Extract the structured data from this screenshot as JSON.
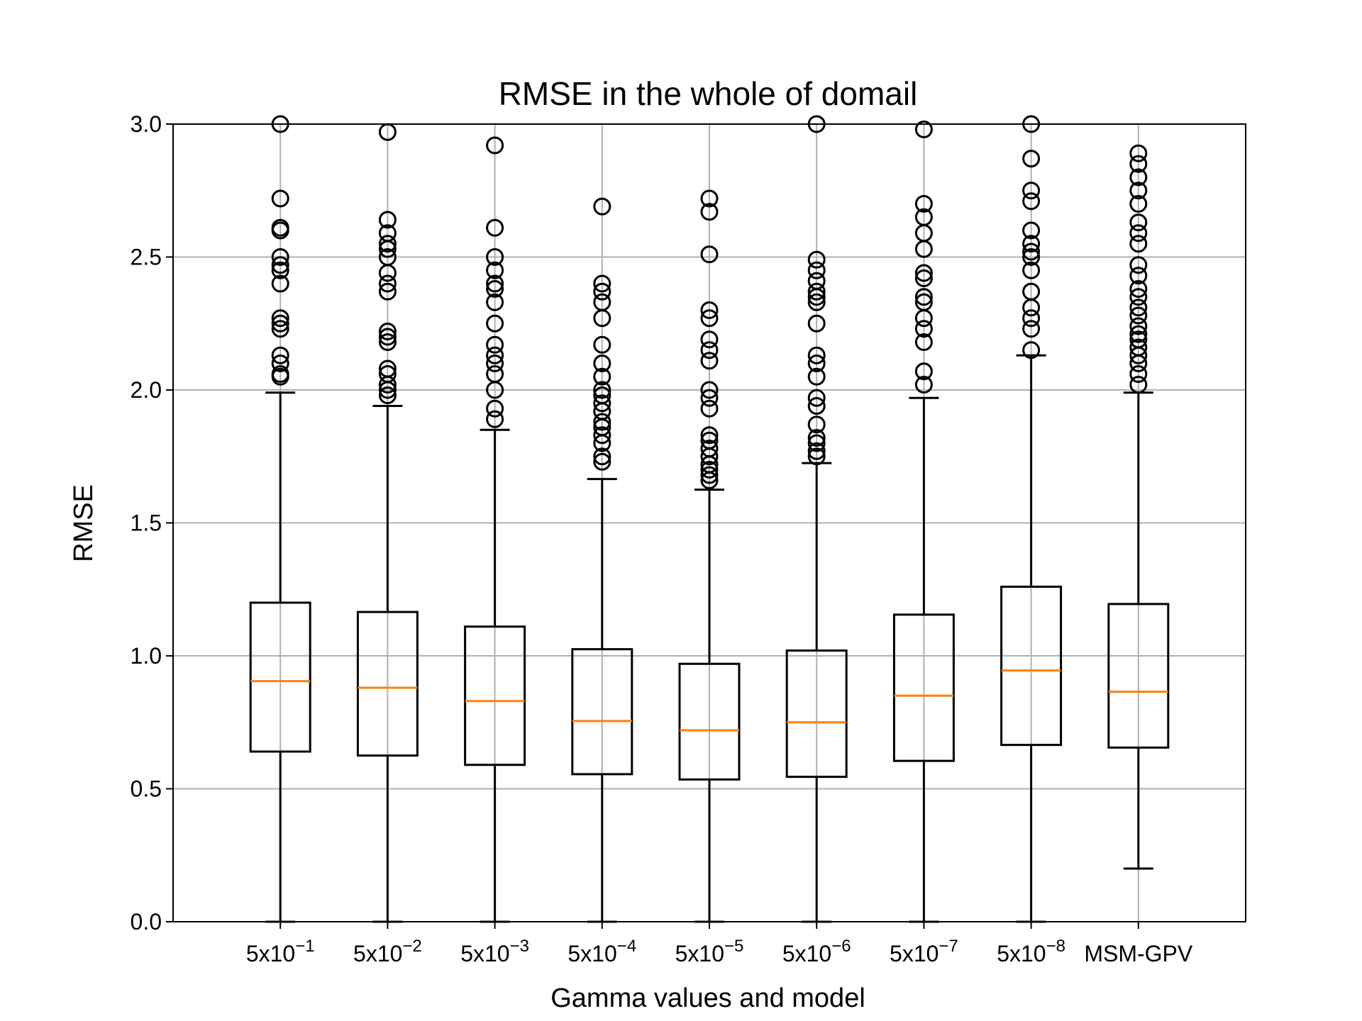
{
  "chart_data": {
    "type": "boxplot",
    "title": "RMSE in the whole of domail",
    "xlabel": "Gamma values and model",
    "ylabel": "RMSE",
    "ylim": [
      0,
      3.0
    ],
    "yticks": [
      "0.0",
      "0.5",
      "1.0",
      "1.5",
      "2.0",
      "2.5",
      "3.0"
    ],
    "grid": true,
    "colors": {
      "box": "#000000",
      "median": "#ff7f0e",
      "grid": "#b0b0b0"
    },
    "categories": [
      {
        "base": "5x10",
        "exp": "−1"
      },
      {
        "base": "5x10",
        "exp": "−2"
      },
      {
        "base": "5x10",
        "exp": "−3"
      },
      {
        "base": "5x10",
        "exp": "−4"
      },
      {
        "base": "5x10",
        "exp": "−5"
      },
      {
        "base": "5x10",
        "exp": "−6"
      },
      {
        "base": "5x10",
        "exp": "−7"
      },
      {
        "base": "5x10",
        "exp": "−8"
      },
      {
        "base": "MSM-GPV",
        "exp": ""
      }
    ],
    "boxes": [
      {
        "whisker_low": 0.0,
        "q1": 0.64,
        "median": 0.905,
        "q3": 1.2,
        "whisker_high": 1.99,
        "outliers": [
          2.05,
          2.06,
          2.1,
          2.13,
          2.23,
          2.25,
          2.27,
          2.4,
          2.45,
          2.47,
          2.5,
          2.6,
          2.61,
          2.72,
          3.0
        ]
      },
      {
        "whisker_low": 0.0,
        "q1": 0.625,
        "median": 0.88,
        "q3": 1.165,
        "whisker_high": 1.94,
        "outliers": [
          1.98,
          2.0,
          2.02,
          2.06,
          2.08,
          2.18,
          2.2,
          2.22,
          2.37,
          2.4,
          2.44,
          2.5,
          2.53,
          2.55,
          2.59,
          2.64,
          2.97
        ]
      },
      {
        "whisker_low": 0.0,
        "q1": 0.59,
        "median": 0.83,
        "q3": 1.11,
        "whisker_high": 1.85,
        "outliers": [
          1.89,
          1.93,
          2.0,
          2.06,
          2.1,
          2.13,
          2.17,
          2.25,
          2.33,
          2.38,
          2.4,
          2.45,
          2.5,
          2.61,
          2.92
        ]
      },
      {
        "whisker_low": 0.0,
        "q1": 0.555,
        "median": 0.755,
        "q3": 1.025,
        "whisker_high": 1.665,
        "outliers": [
          1.73,
          1.75,
          1.8,
          1.83,
          1.86,
          1.88,
          1.92,
          1.95,
          1.98,
          2.0,
          2.05,
          2.1,
          2.17,
          2.27,
          2.33,
          2.37,
          2.4,
          2.69
        ]
      },
      {
        "whisker_low": 0.0,
        "q1": 0.535,
        "median": 0.72,
        "q3": 0.97,
        "whisker_high": 1.625,
        "outliers": [
          1.66,
          1.68,
          1.7,
          1.72,
          1.75,
          1.78,
          1.81,
          1.83,
          1.93,
          1.97,
          2.0,
          2.11,
          2.15,
          2.19,
          2.27,
          2.3,
          2.51,
          2.67,
          2.72
        ]
      },
      {
        "whisker_low": 0.0,
        "q1": 0.545,
        "median": 0.75,
        "q3": 1.02,
        "whisker_high": 1.725,
        "outliers": [
          1.75,
          1.77,
          1.8,
          1.82,
          1.87,
          1.94,
          1.97,
          2.05,
          2.1,
          2.13,
          2.25,
          2.33,
          2.35,
          2.37,
          2.41,
          2.45,
          2.49,
          3.0
        ]
      },
      {
        "whisker_low": 0.0,
        "q1": 0.605,
        "median": 0.85,
        "q3": 1.155,
        "whisker_high": 1.97,
        "outliers": [
          2.02,
          2.07,
          2.18,
          2.23,
          2.27,
          2.33,
          2.35,
          2.42,
          2.44,
          2.53,
          2.59,
          2.65,
          2.7,
          2.98
        ]
      },
      {
        "whisker_low": 0.0,
        "q1": 0.665,
        "median": 0.945,
        "q3": 1.26,
        "whisker_high": 2.13,
        "outliers": [
          2.15,
          2.23,
          2.27,
          2.31,
          2.37,
          2.45,
          2.5,
          2.52,
          2.55,
          2.6,
          2.71,
          2.75,
          2.87,
          3.0
        ]
      },
      {
        "whisker_low": 0.2,
        "q1": 0.655,
        "median": 0.865,
        "q3": 1.195,
        "whisker_high": 1.99,
        "outliers": [
          2.02,
          2.06,
          2.1,
          2.13,
          2.16,
          2.19,
          2.21,
          2.24,
          2.28,
          2.31,
          2.35,
          2.38,
          2.43,
          2.47,
          2.55,
          2.59,
          2.63,
          2.7,
          2.75,
          2.8,
          2.85,
          2.89
        ]
      }
    ]
  }
}
